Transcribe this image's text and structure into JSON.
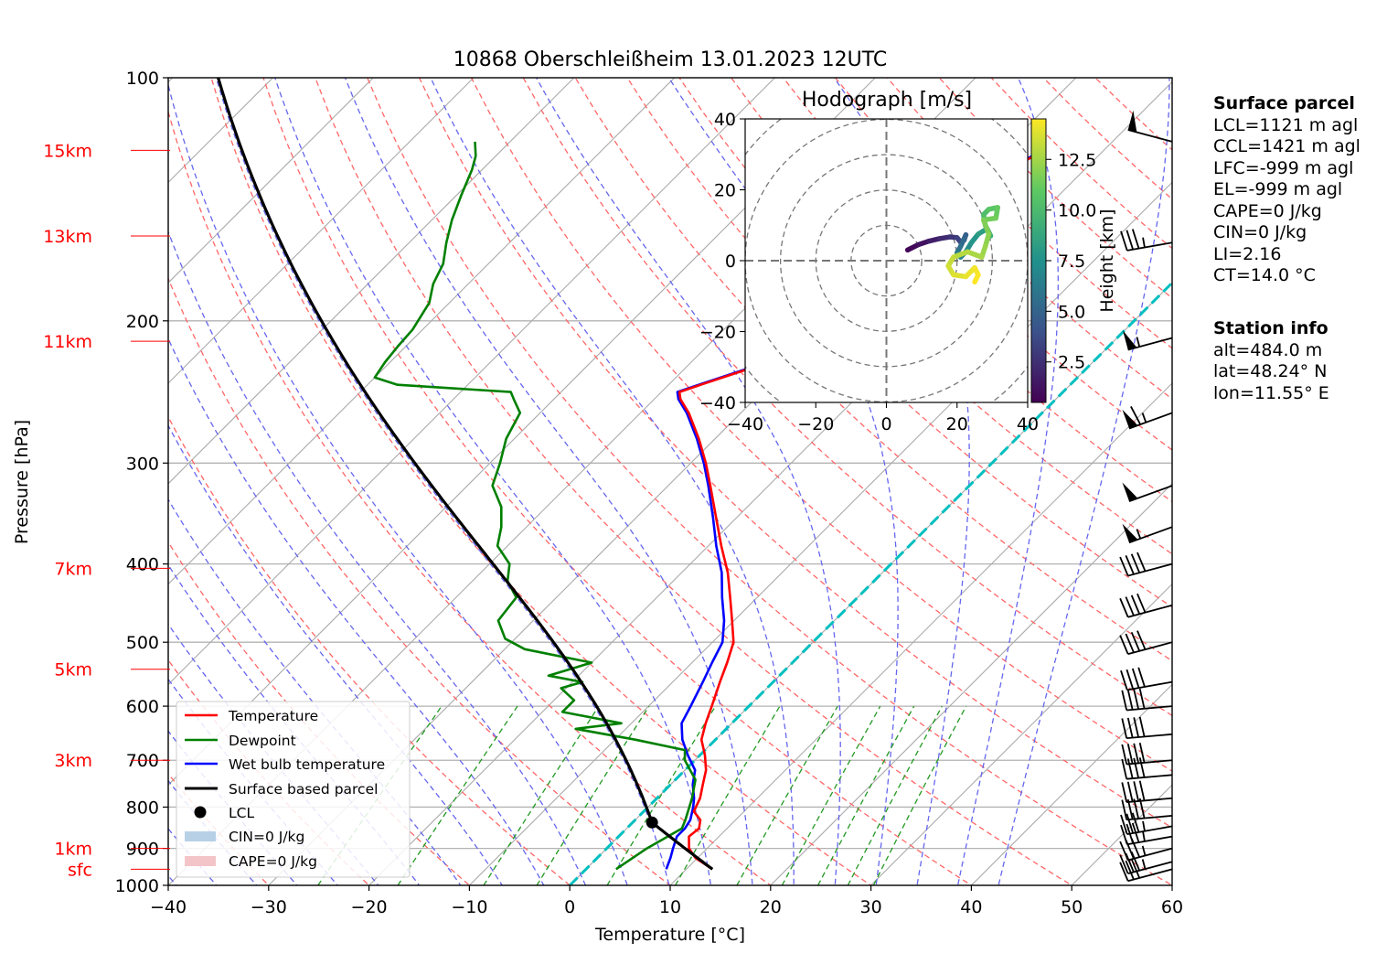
{
  "chart_data": {
    "type": "line",
    "title": "10868 Oberschleißheim 13.01.2023 12UTC",
    "xlabel": "Temperature [°C]",
    "ylabel": "Pressure [hPa]",
    "xlim": [
      -40,
      60
    ],
    "ylim": [
      1000,
      100
    ],
    "y_scale": "log",
    "x_ticks": [
      -40,
      -30,
      -20,
      -10,
      0,
      10,
      20,
      30,
      40,
      50,
      60
    ],
    "y_ticks": [
      100,
      200,
      300,
      400,
      500,
      600,
      700,
      800,
      900,
      1000
    ],
    "height_labels": [
      {
        "label": "15km",
        "p": 123
      },
      {
        "label": "13km",
        "p": 157
      },
      {
        "label": "11km",
        "p": 212
      },
      {
        "label": "7km",
        "p": 405
      },
      {
        "label": "5km",
        "p": 540
      },
      {
        "label": "3km",
        "p": 700
      },
      {
        "label": "1km",
        "p": 900
      },
      {
        "label": "sfc",
        "p": 955
      }
    ],
    "legend_position": "lower-left",
    "legend": [
      "Temperature",
      "Dewpoint",
      "Wet bulb temperature",
      "Surface based parcel",
      "LCL",
      "CIN=0 J/kg",
      "CAPE=0 J/kg"
    ],
    "colors": {
      "temperature": "#ff0000",
      "dewpoint": "#008000",
      "wetbulb": "#0000ff",
      "parcel": "#000000",
      "dry_adiabat": "#ff6666",
      "moist_adiabat": "#6666ee",
      "mixing_ratio": "#229922",
      "zero_isotherm": "#00bfbf",
      "isotherm": "#aaaaaa",
      "cin": "#b7d0e6",
      "cape": "#f4c5c8"
    },
    "series": [
      {
        "name": "Temperature",
        "points": [
          [
            955,
            12.6
          ],
          [
            925,
            9.8
          ],
          [
            900,
            8.2
          ],
          [
            870,
            7.0
          ],
          [
            850,
            7.2
          ],
          [
            830,
            6.5
          ],
          [
            810,
            5.0
          ],
          [
            780,
            4.3
          ],
          [
            750,
            3.2
          ],
          [
            720,
            2.1
          ],
          [
            690,
            0.5
          ],
          [
            660,
            -1.4
          ],
          [
            630,
            -2.6
          ],
          [
            600,
            -3.7
          ],
          [
            560,
            -5.3
          ],
          [
            530,
            -6.5
          ],
          [
            500,
            -7.9
          ],
          [
            470,
            -10.2
          ],
          [
            440,
            -12.7
          ],
          [
            410,
            -15.4
          ],
          [
            380,
            -18.7
          ],
          [
            350,
            -22.1
          ],
          [
            320,
            -25.8
          ],
          [
            300,
            -28.5
          ],
          [
            280,
            -31.6
          ],
          [
            260,
            -35.2
          ],
          [
            250,
            -37.4
          ],
          [
            245,
            -38.2
          ],
          [
            240,
            -36.8
          ],
          [
            230,
            -33.8
          ],
          [
            220,
            -31.8
          ],
          [
            210,
            -30.4
          ],
          [
            200,
            -30.5
          ],
          [
            190,
            -28.2
          ],
          [
            180,
            -27.0
          ],
          [
            170,
            -27.0
          ],
          [
            160,
            -28.6
          ],
          [
            150,
            -28.6
          ],
          [
            140,
            -28.3
          ],
          [
            135,
            -27.0
          ],
          [
            130,
            -27.5
          ],
          [
            125,
            -26.4
          ],
          [
            120,
            -27.2
          ],
          [
            115,
            -28.3
          ]
        ]
      },
      {
        "name": "Dewpoint",
        "points": [
          [
            955,
            3.0
          ],
          [
            900,
            4.0
          ],
          [
            850,
            5.5
          ],
          [
            830,
            5.0
          ],
          [
            780,
            3.5
          ],
          [
            740,
            2.0
          ],
          [
            700,
            -1.0
          ],
          [
            680,
            -2.0
          ],
          [
            660,
            -8.0
          ],
          [
            640,
            -15.0
          ],
          [
            630,
            -11.0
          ],
          [
            610,
            -18.0
          ],
          [
            590,
            -18.0
          ],
          [
            570,
            -20.5
          ],
          [
            560,
            -19.0
          ],
          [
            550,
            -23.0
          ],
          [
            530,
            -20.0
          ],
          [
            510,
            -28.0
          ],
          [
            495,
            -31.0
          ],
          [
            470,
            -33.5
          ],
          [
            440,
            -34.0
          ],
          [
            420,
            -36.5
          ],
          [
            400,
            -38.0
          ],
          [
            380,
            -41.0
          ],
          [
            360,
            -42.5
          ],
          [
            340,
            -44.5
          ],
          [
            320,
            -47.5
          ],
          [
            300,
            -49.0
          ],
          [
            280,
            -50.8
          ],
          [
            260,
            -52.0
          ],
          [
            250,
            -54.0
          ],
          [
            245,
            -55.0
          ],
          [
            240,
            -67.0
          ],
          [
            235,
            -70.0
          ],
          [
            225,
            -70.5
          ],
          [
            215,
            -70.8
          ],
          [
            205,
            -71.0
          ],
          [
            190,
            -72.0
          ],
          [
            180,
            -73.5
          ],
          [
            170,
            -74.5
          ],
          [
            160,
            -76.3
          ],
          [
            150,
            -78.0
          ],
          [
            140,
            -79.5
          ],
          [
            130,
            -81.0
          ],
          [
            125,
            -82.0
          ],
          [
            120,
            -83.5
          ]
        ]
      },
      {
        "name": "Wet bulb temperature",
        "points": [
          [
            955,
            8.0
          ],
          [
            925,
            7.3
          ],
          [
            900,
            6.6
          ],
          [
            870,
            5.8
          ],
          [
            850,
            5.8
          ],
          [
            830,
            5.5
          ],
          [
            800,
            4.5
          ],
          [
            780,
            3.7
          ],
          [
            750,
            2.2
          ],
          [
            720,
            1.0
          ],
          [
            690,
            -1.2
          ],
          [
            660,
            -3.3
          ],
          [
            630,
            -5.0
          ],
          [
            600,
            -5.8
          ],
          [
            560,
            -7.0
          ],
          [
            530,
            -8.0
          ],
          [
            500,
            -9.0
          ],
          [
            470,
            -11.0
          ],
          [
            440,
            -13.5
          ],
          [
            410,
            -16.0
          ],
          [
            380,
            -19.2
          ],
          [
            350,
            -22.4
          ],
          [
            320,
            -26.0
          ],
          [
            300,
            -28.7
          ],
          [
            280,
            -31.8
          ],
          [
            260,
            -35.4
          ],
          [
            250,
            -37.6
          ],
          [
            245,
            -38.4
          ],
          [
            240,
            -37.0
          ],
          [
            230,
            -34.0
          ],
          [
            220,
            -32.0
          ],
          [
            210,
            -30.6
          ],
          [
            200,
            -30.7
          ],
          [
            190,
            -28.4
          ],
          [
            180,
            -27.2
          ],
          [
            170,
            -27.2
          ],
          [
            160,
            -28.8
          ],
          [
            150,
            -28.8
          ],
          [
            140,
            -28.5
          ],
          [
            135,
            -27.2
          ],
          [
            130,
            -27.7
          ],
          [
            125,
            -26.6
          ],
          [
            120,
            -27.4
          ],
          [
            115,
            -28.5
          ]
        ]
      },
      {
        "name": "Surface based parcel",
        "surface_p": 955,
        "surface_T": 12.6,
        "lcl_p": 836
      }
    ],
    "wind_barbs": [
      {
        "p": 955,
        "dir": 255,
        "kt": 30
      },
      {
        "p": 935,
        "dir": 255,
        "kt": 35
      },
      {
        "p": 900,
        "dir": 255,
        "kt": 35
      },
      {
        "p": 870,
        "dir": 260,
        "kt": 35
      },
      {
        "p": 845,
        "dir": 260,
        "kt": 35
      },
      {
        "p": 820,
        "dir": 265,
        "kt": 40
      },
      {
        "p": 780,
        "dir": 265,
        "kt": 40
      },
      {
        "p": 730,
        "dir": 265,
        "kt": 40
      },
      {
        "p": 700,
        "dir": 265,
        "kt": 40
      },
      {
        "p": 650,
        "dir": 265,
        "kt": 40
      },
      {
        "p": 600,
        "dir": 265,
        "kt": 40
      },
      {
        "p": 560,
        "dir": 260,
        "kt": 40
      },
      {
        "p": 500,
        "dir": 255,
        "kt": 40
      },
      {
        "p": 450,
        "dir": 255,
        "kt": 40
      },
      {
        "p": 400,
        "dir": 255,
        "kt": 40
      },
      {
        "p": 360,
        "dir": 250,
        "kt": 55
      },
      {
        "p": 320,
        "dir": 250,
        "kt": 50
      },
      {
        "p": 260,
        "dir": 250,
        "kt": 65
      },
      {
        "p": 210,
        "dir": 255,
        "kt": 55
      },
      {
        "p": 160,
        "dir": 260,
        "kt": 35
      },
      {
        "p": 120,
        "dir": 285,
        "kt": 50
      }
    ],
    "hodograph": {
      "title": "Hodograph [m/s]",
      "xlim": [
        -40,
        40
      ],
      "ylim": [
        -40,
        40
      ],
      "ticks": [
        -40,
        -20,
        0,
        20,
        40
      ],
      "colorbar_label": "Height [km]",
      "colorbar_ticks": [
        2.5,
        5.0,
        7.5,
        10.0,
        12.5
      ],
      "colorbar_range": [
        0.5,
        14.5
      ],
      "points": [
        {
          "u": 6.0,
          "v": 3.0,
          "h": 0.5
        },
        {
          "u": 9.0,
          "v": 4.5,
          "h": 1.0
        },
        {
          "u": 12.0,
          "v": 5.5,
          "h": 1.5
        },
        {
          "u": 15.0,
          "v": 6.2,
          "h": 2.0
        },
        {
          "u": 18.0,
          "v": 6.7,
          "h": 2.5
        },
        {
          "u": 20.0,
          "v": 6.5,
          "h": 3.0
        },
        {
          "u": 21.0,
          "v": 5.2,
          "h": 3.5
        },
        {
          "u": 22.0,
          "v": 5.8,
          "h": 4.0
        },
        {
          "u": 22.5,
          "v": 7.3,
          "h": 4.5
        },
        {
          "u": 22.0,
          "v": 6.2,
          "h": 5.0
        },
        {
          "u": 21.0,
          "v": 4.0,
          "h": 5.5
        },
        {
          "u": 20.0,
          "v": 2.2,
          "h": 6.0
        },
        {
          "u": 21.0,
          "v": 1.0,
          "h": 6.5
        },
        {
          "u": 22.5,
          "v": 2.5,
          "h": 7.0
        },
        {
          "u": 24.0,
          "v": 5.0,
          "h": 7.5
        },
        {
          "u": 26.0,
          "v": 7.5,
          "h": 8.0
        },
        {
          "u": 28.5,
          "v": 9.0,
          "h": 8.5
        },
        {
          "u": 29.5,
          "v": 7.0,
          "h": 9.0
        },
        {
          "u": 28.0,
          "v": 10.0,
          "h": 9.5
        },
        {
          "u": 27.5,
          "v": 13.0,
          "h": 10.0
        },
        {
          "u": 29.0,
          "v": 14.5,
          "h": 10.5
        },
        {
          "u": 31.5,
          "v": 15.0,
          "h": 11.0
        },
        {
          "u": 31.0,
          "v": 12.0,
          "h": 11.3
        },
        {
          "u": 27.5,
          "v": 11.5,
          "h": 11.6
        },
        {
          "u": 29.0,
          "v": 7.5,
          "h": 11.9
        },
        {
          "u": 28.0,
          "v": 4.0,
          "h": 12.2
        },
        {
          "u": 27.0,
          "v": 1.0,
          "h": 12.5
        },
        {
          "u": 23.0,
          "v": 2.5,
          "h": 12.8
        },
        {
          "u": 19.0,
          "v": 1.0,
          "h": 13.1
        },
        {
          "u": 17.5,
          "v": -1.5,
          "h": 13.4
        },
        {
          "u": 19.0,
          "v": -4.0,
          "h": 13.7
        },
        {
          "u": 22.5,
          "v": -4.5,
          "h": 14.0
        },
        {
          "u": 25.0,
          "v": -2.0,
          "h": 14.2
        },
        {
          "u": 26.0,
          "v": -4.0,
          "h": 14.4
        },
        {
          "u": 25.0,
          "v": -6.0,
          "h": 14.5
        }
      ]
    }
  },
  "surface_parcel": {
    "title": "Surface parcel",
    "lines": [
      "LCL=1121 m agl",
      "CCL=1421 m agl",
      "LFC=-999 m agl",
      "EL=-999 m agl",
      "CAPE=0 J/kg",
      "CIN=0 J/kg",
      "LI=2.16",
      "CT=14.0 °C"
    ]
  },
  "station_info": {
    "title": "Station info",
    "lines": [
      "alt=484.0 m",
      "lat=48.24° N",
      "lon=11.55° E"
    ]
  }
}
